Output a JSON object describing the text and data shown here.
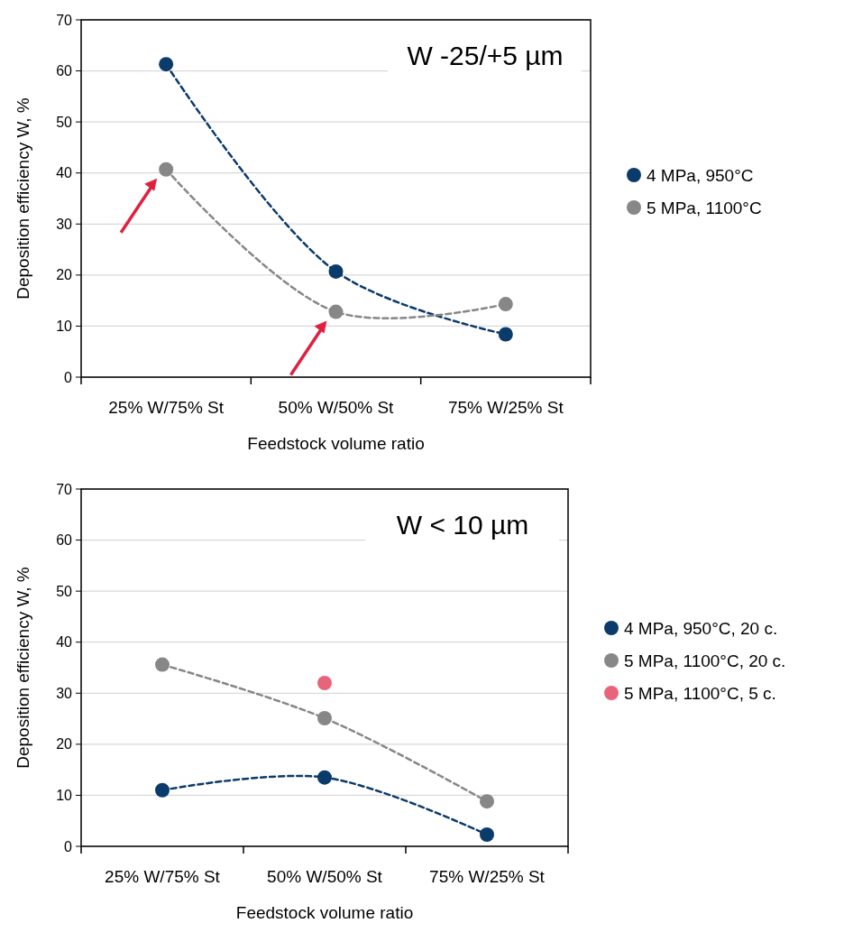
{
  "chart_data": [
    {
      "type": "line",
      "title": "W -25/+5 µm",
      "xlabel": "Feedstock volume ratio",
      "ylabel": "Deposition efficiency W, %",
      "categories": [
        "25% W/75% St",
        "50% W/50% St",
        "75% W/25% St"
      ],
      "series": [
        {
          "name": "4 MPa, 950°C",
          "color": "#0b3b6b",
          "values": [
            61.3,
            20.7,
            8.4
          ]
        },
        {
          "name": "5 MPa, 1100°C",
          "color": "#878787",
          "values": [
            40.7,
            12.8,
            14.3
          ]
        }
      ],
      "ylim": [
        0,
        70
      ],
      "yticks": [
        0,
        10,
        20,
        30,
        40,
        50,
        60,
        70
      ],
      "grid": "y",
      "legend": "right",
      "marker": "circle",
      "line_style": "dashed"
    },
    {
      "type": "line",
      "title": "W < 10 µm",
      "xlabel": "Feedstock volume ratio",
      "ylabel": "Deposition efficiency W, %",
      "categories": [
        "25% W/75% St",
        "50% W/50% St",
        "75% W/25% St"
      ],
      "series": [
        {
          "name": "4 MPa, 950°C, 20 c.",
          "color": "#0b3b6b",
          "values": [
            11.0,
            13.5,
            2.3
          ]
        },
        {
          "name": "5 MPa, 1100°C, 20 c.",
          "color": "#878787",
          "values": [
            35.6,
            25.1,
            8.8
          ]
        },
        {
          "name": "5 MPa, 1100°C, 5 c.",
          "type": "scatter",
          "color": "#e8647a",
          "values": [
            null,
            32.0,
            null
          ]
        }
      ],
      "ylim": [
        0,
        70
      ],
      "yticks": [
        0,
        10,
        20,
        30,
        40,
        50,
        60,
        70
      ],
      "grid": "y",
      "legend": "right",
      "marker": "circle",
      "line_style": "dashed"
    }
  ]
}
